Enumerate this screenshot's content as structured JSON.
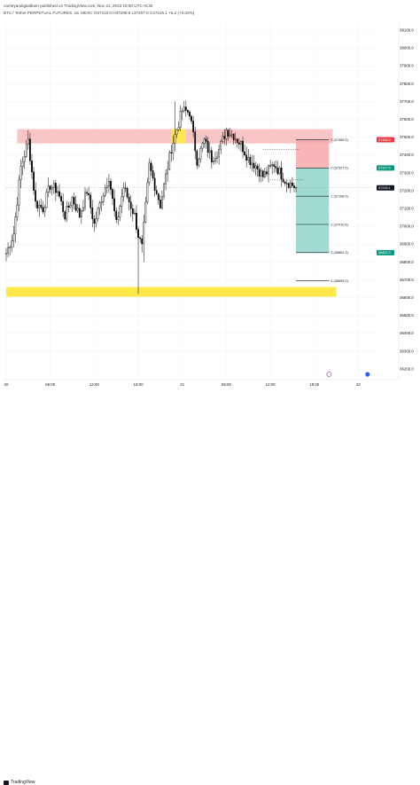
{
  "header": {
    "publisher": "carrieyandigitalbam published on TradingView.com, Nov 21, 2023 15:50 UTC+5:30",
    "symbol_line": "BTC / Tether PERPETUAL FUTURES, 15, MEXC  O37210.0  H37299.9  L37207.0  C37216.1  +6.2 (+0.02%)"
  },
  "footer": {
    "brand": "TradingView"
  },
  "colors": {
    "up": "#000000",
    "down": "#000000",
    "wick": "#000000",
    "resistance": "#f8c5c6",
    "support": "#ffe94a",
    "stop_zone": "#f6a8ab",
    "target_zone": "#8fd3c8",
    "sell_tag": "#f23645",
    "buy_tag": "#089981",
    "current_tag": "#131722"
  },
  "chart_data": {
    "type": "candlestick",
    "symbol": "BTC / Tether PERPETUAL FUTURES",
    "timeframe": "15",
    "exchange": "MEXC",
    "ylim": [
      36140,
      38140
    ],
    "y_ticks": [
      38100,
      38000,
      37900,
      37800,
      37700,
      37600,
      37500,
      37400,
      37300,
      37200,
      37100,
      37000,
      36900,
      36800,
      36700,
      36600,
      36500,
      36400,
      36300,
      36200
    ],
    "x_ticks": [
      "20",
      "06:00",
      "12:00",
      "18:00",
      "21",
      "06:00",
      "12:00",
      "18:00",
      "22"
    ],
    "x_tick_index": [
      0,
      24,
      48,
      72,
      96,
      120,
      144,
      168,
      192
    ],
    "zones": [
      {
        "kind": "resistance",
        "start_index": 6,
        "end_index": 178,
        "high": 37545,
        "low": 37465
      },
      {
        "kind": "support",
        "start_index": 0,
        "end_index": 180,
        "high": 36660,
        "low": 36605
      }
    ],
    "position": {
      "direction": "short",
      "start_index": 158,
      "end_index": 176,
      "stop": 37485.5,
      "entry": 37327.5,
      "targets": [
        37168.9,
        37010.6,
        36852.3
      ],
      "extra_level": 36694.0,
      "stop_label": "2 (37485.5)",
      "entry_label": "0 (37327.5)",
      "target_labels": [
        "1 (37168.9)",
        "2 (37010.6)",
        "3 (36852.3)"
      ],
      "extra_label": "4 (36694.0)"
    },
    "price_tags": [
      {
        "kind": "sell",
        "text": "37485.5",
        "value": 37485.5
      },
      {
        "kind": "entry",
        "text": "37327.5",
        "value": 37327.5
      },
      {
        "kind": "current",
        "text": "37216.1",
        "value": 37216.1
      },
      {
        "kind": "buy",
        "text": "36852.3",
        "value": 36852.3
      }
    ],
    "last_price": 37216.1,
    "anchors": [
      [
        0,
        36850
      ],
      [
        4,
        36960
      ],
      [
        8,
        37330
      ],
      [
        12,
        37480
      ],
      [
        16,
        37130
      ],
      [
        20,
        37100
      ],
      [
        24,
        37230
      ],
      [
        28,
        37200
      ],
      [
        32,
        37060
      ],
      [
        36,
        37160
      ],
      [
        40,
        37060
      ],
      [
        44,
        37200
      ],
      [
        48,
        37010
      ],
      [
        52,
        37160
      ],
      [
        56,
        37280
      ],
      [
        60,
        37010
      ],
      [
        64,
        37220
      ],
      [
        70,
        37060
      ],
      [
        72,
        36950
      ],
      [
        74,
        36880
      ],
      [
        78,
        37340
      ],
      [
        84,
        37120
      ],
      [
        90,
        37440
      ],
      [
        96,
        37650
      ],
      [
        100,
        37640
      ],
      [
        104,
        37370
      ],
      [
        108,
        37480
      ],
      [
        112,
        37380
      ],
      [
        116,
        37430
      ],
      [
        120,
        37540
      ],
      [
        124,
        37510
      ],
      [
        128,
        37460
      ],
      [
        132,
        37380
      ],
      [
        136,
        37340
      ],
      [
        140,
        37280
      ],
      [
        146,
        37350
      ],
      [
        152,
        37260
      ],
      [
        158,
        37216
      ]
    ]
  }
}
